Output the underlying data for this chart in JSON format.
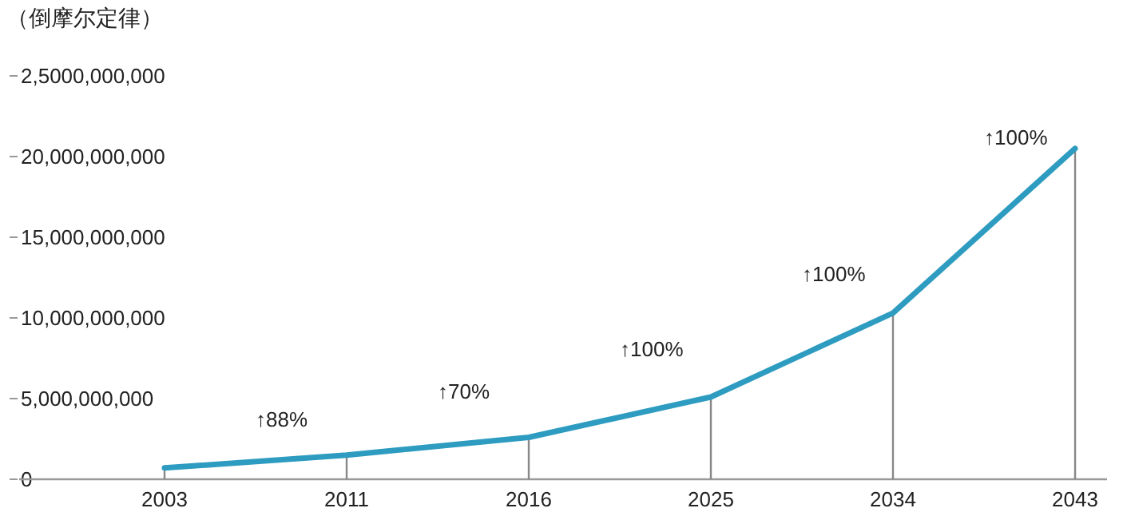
{
  "chart_data": {
    "type": "line",
    "title": "（倒摩尔定律）",
    "categories": [
      "2003",
      "2011",
      "2016",
      "2025",
      "2034",
      "2043"
    ],
    "series": [
      {
        "type": "bar",
        "color": "#888888",
        "values": [
          700000000,
          1500000000,
          2600000000,
          5100000000,
          10300000000,
          20500000000
        ]
      },
      {
        "color": "#2e9cc0",
        "values": [
          700000000,
          1500000000,
          2600000000,
          5100000000,
          10300000000,
          20500000000
        ]
      }
    ],
    "ylim": [
      0,
      25000000000
    ],
    "yticks": [
      {
        "value": 0,
        "label": "0"
      },
      {
        "value": 5000000000,
        "label": "5,000,000,000"
      },
      {
        "value": 10000000000,
        "label": "10,000,000,000"
      },
      {
        "value": 15000000000,
        "label": "15,000,000,000"
      },
      {
        "value": 20000000000,
        "label": "20,000,000,000"
      },
      {
        "value": 25000000000,
        "label": "2,5000,000,000"
      }
    ],
    "annotations": [
      "↑88%",
      "↑70%",
      "↑100%",
      "↑100%",
      "↑100%"
    ],
    "grid": false,
    "marker": "none",
    "line_style": "solid"
  }
}
